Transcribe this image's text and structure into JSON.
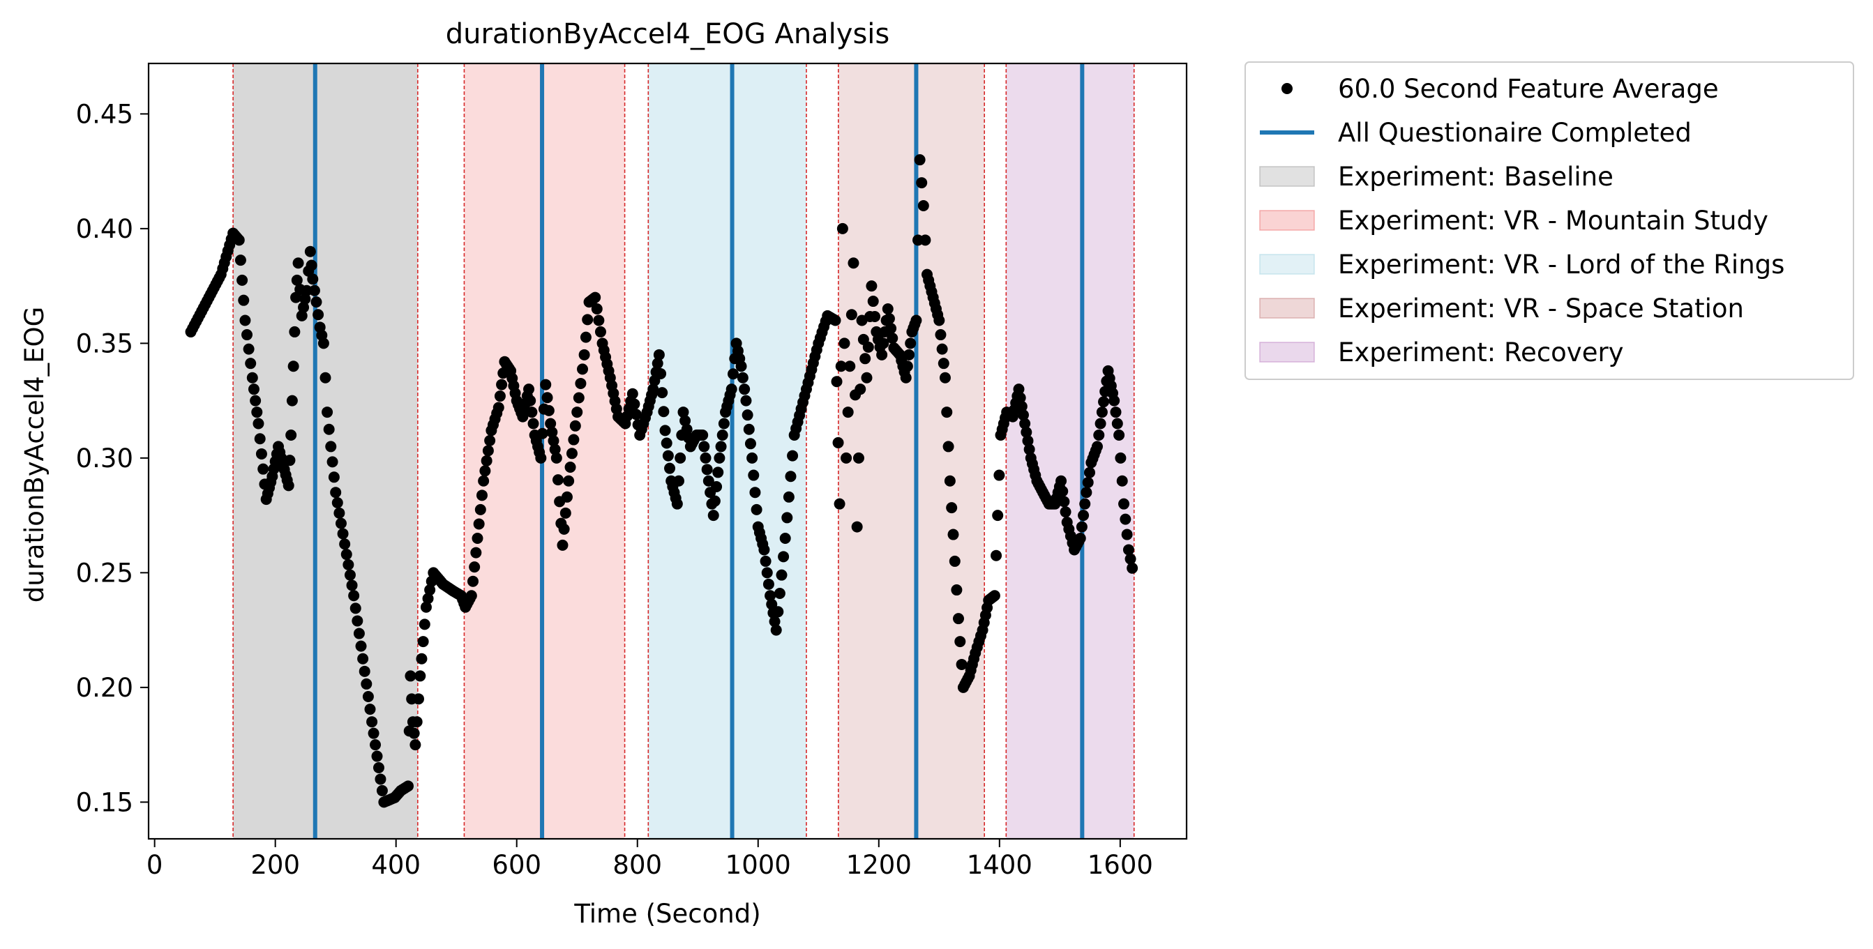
{
  "chart_data": {
    "type": "scatter",
    "title": "durationByAccel4_EOG Analysis",
    "xlabel": "Time (Second)",
    "ylabel": "durationByAccel4_EOG",
    "xlim": [
      -10,
      1710
    ],
    "ylim": [
      0.134,
      0.472
    ],
    "xticks": [
      0,
      200,
      400,
      600,
      800,
      1000,
      1200,
      1400,
      1600
    ],
    "yticks": [
      0.15,
      0.2,
      0.25,
      0.3,
      0.35,
      0.4,
      0.45
    ],
    "ytick_labels": [
      "0.15",
      "0.20",
      "0.25",
      "0.30",
      "0.35",
      "0.40",
      "0.45"
    ],
    "grid": false,
    "legend_position": "outside-top-right",
    "legend": [
      {
        "kind": "marker",
        "label": "60.0 Second Feature Average",
        "color": "#000000"
      },
      {
        "kind": "line",
        "label": "All Questionaire Completed",
        "color": "#1f77b4"
      },
      {
        "kind": "patch",
        "label": "Experiment: Baseline",
        "color": "#a9a9a9"
      },
      {
        "kind": "patch",
        "label": "Experiment: VR - Mountain Study",
        "color": "#f08080"
      },
      {
        "kind": "patch",
        "label": "Experiment: VR - Lord of the Rings",
        "color": "#add8e6"
      },
      {
        "kind": "patch",
        "label": "Experiment: VR - Space Station",
        "color": "#cd8c8c"
      },
      {
        "kind": "patch",
        "label": "Experiment: Recovery",
        "color": "#c38fc8"
      }
    ],
    "regions": [
      {
        "name": "Experiment: Baseline",
        "start": 130,
        "end": 436,
        "color": "#a9a9a9",
        "opacity": 0.45
      },
      {
        "name": "Experiment: VR - Mountain Study",
        "start": 513,
        "end": 779,
        "color": "#f08080",
        "opacity": 0.28
      },
      {
        "name": "Experiment: VR - Lord of the Rings",
        "start": 818,
        "end": 1080,
        "color": "#add8e6",
        "opacity": 0.42
      },
      {
        "name": "Experiment: VR - Space Station",
        "start": 1133,
        "end": 1375,
        "color": "#cd8c8c",
        "opacity": 0.28
      },
      {
        "name": "Experiment: Recovery",
        "start": 1411,
        "end": 1623,
        "color": "#c38fc8",
        "opacity": 0.32
      }
    ],
    "questionnaire_times": [
      266,
      642,
      957,
      1262,
      1537
    ],
    "series": [
      {
        "name": "60.0 Second Feature Average",
        "color": "#000000",
        "points": [
          [
            60,
            0.355
          ],
          [
            90,
            0.37
          ],
          [
            110,
            0.38
          ],
          [
            130,
            0.398
          ],
          [
            140,
            0.395
          ],
          [
            150,
            0.36
          ],
          [
            162,
            0.335
          ],
          [
            172,
            0.315
          ],
          [
            185,
            0.282
          ],
          [
            195,
            0.292
          ],
          [
            205,
            0.305
          ],
          [
            215,
            0.295
          ],
          [
            222,
            0.288
          ],
          [
            226,
            0.31
          ],
          [
            230,
            0.34
          ],
          [
            234,
            0.37
          ],
          [
            238,
            0.385
          ],
          [
            244,
            0.362
          ],
          [
            252,
            0.373
          ],
          [
            258,
            0.39
          ],
          [
            262,
            0.378
          ],
          [
            268,
            0.368
          ],
          [
            274,
            0.357
          ],
          [
            280,
            0.35
          ],
          [
            286,
            0.32
          ],
          [
            292,
            0.305
          ],
          [
            300,
            0.285
          ],
          [
            330,
            0.24
          ],
          [
            360,
            0.185
          ],
          [
            380,
            0.15
          ],
          [
            398,
            0.152
          ],
          [
            408,
            0.155
          ],
          [
            420,
            0.157
          ],
          [
            424,
            0.205
          ],
          [
            428,
            0.185
          ],
          [
            432,
            0.175
          ],
          [
            440,
            0.205
          ],
          [
            450,
            0.235
          ],
          [
            462,
            0.25
          ],
          [
            478,
            0.245
          ],
          [
            495,
            0.242
          ],
          [
            508,
            0.24
          ],
          [
            515,
            0.235
          ],
          [
            525,
            0.24
          ],
          [
            535,
            0.265
          ],
          [
            545,
            0.29
          ],
          [
            558,
            0.312
          ],
          [
            570,
            0.322
          ],
          [
            580,
            0.342
          ],
          [
            590,
            0.338
          ],
          [
            600,
            0.325
          ],
          [
            610,
            0.318
          ],
          [
            620,
            0.33
          ],
          [
            630,
            0.31
          ],
          [
            640,
            0.3
          ],
          [
            648,
            0.332
          ],
          [
            656,
            0.315
          ],
          [
            666,
            0.3
          ],
          [
            676,
            0.262
          ],
          [
            686,
            0.29
          ],
          [
            700,
            0.32
          ],
          [
            712,
            0.345
          ],
          [
            720,
            0.368
          ],
          [
            730,
            0.37
          ],
          [
            742,
            0.35
          ],
          [
            755,
            0.335
          ],
          [
            768,
            0.318
          ],
          [
            780,
            0.315
          ],
          [
            792,
            0.328
          ],
          [
            804,
            0.31
          ],
          [
            816,
            0.32
          ],
          [
            826,
            0.33
          ],
          [
            836,
            0.345
          ],
          [
            846,
            0.312
          ],
          [
            856,
            0.29
          ],
          [
            866,
            0.28
          ],
          [
            876,
            0.32
          ],
          [
            888,
            0.305
          ],
          [
            898,
            0.31
          ],
          [
            908,
            0.31
          ],
          [
            918,
            0.29
          ],
          [
            926,
            0.275
          ],
          [
            936,
            0.3
          ],
          [
            946,
            0.32
          ],
          [
            956,
            0.33
          ],
          [
            964,
            0.35
          ],
          [
            972,
            0.34
          ],
          [
            980,
            0.325
          ],
          [
            990,
            0.3
          ],
          [
            1000,
            0.27
          ],
          [
            1010,
            0.26
          ],
          [
            1020,
            0.24
          ],
          [
            1030,
            0.225
          ],
          [
            1045,
            0.265
          ],
          [
            1060,
            0.31
          ],
          [
            1080,
            0.33
          ],
          [
            1100,
            0.35
          ],
          [
            1115,
            0.362
          ],
          [
            1128,
            0.36
          ],
          [
            1135,
            0.28
          ],
          [
            1140,
            0.4
          ],
          [
            1146,
            0.3
          ],
          [
            1152,
            0.34
          ],
          [
            1158,
            0.385
          ],
          [
            1164,
            0.27
          ],
          [
            1172,
            0.36
          ],
          [
            1180,
            0.335
          ],
          [
            1188,
            0.375
          ],
          [
            1196,
            0.355
          ],
          [
            1205,
            0.345
          ],
          [
            1215,
            0.365
          ],
          [
            1225,
            0.348
          ],
          [
            1235,
            0.345
          ],
          [
            1245,
            0.335
          ],
          [
            1255,
            0.355
          ],
          [
            1262,
            0.36
          ],
          [
            1268,
            0.43
          ],
          [
            1274,
            0.41
          ],
          [
            1280,
            0.38
          ],
          [
            1290,
            0.37
          ],
          [
            1300,
            0.36
          ],
          [
            1310,
            0.335
          ],
          [
            1318,
            0.29
          ],
          [
            1326,
            0.255
          ],
          [
            1332,
            0.23
          ],
          [
            1340,
            0.2
          ],
          [
            1350,
            0.205
          ],
          [
            1360,
            0.215
          ],
          [
            1372,
            0.225
          ],
          [
            1382,
            0.238
          ],
          [
            1392,
            0.24
          ],
          [
            1402,
            0.31
          ],
          [
            1412,
            0.32
          ],
          [
            1422,
            0.318
          ],
          [
            1432,
            0.33
          ],
          [
            1442,
            0.315
          ],
          [
            1452,
            0.3
          ],
          [
            1462,
            0.29
          ],
          [
            1472,
            0.285
          ],
          [
            1482,
            0.28
          ],
          [
            1492,
            0.28
          ],
          [
            1502,
            0.29
          ],
          [
            1512,
            0.272
          ],
          [
            1524,
            0.26
          ],
          [
            1534,
            0.265
          ],
          [
            1544,
            0.285
          ],
          [
            1552,
            0.298
          ],
          [
            1562,
            0.305
          ],
          [
            1570,
            0.32
          ],
          [
            1580,
            0.338
          ],
          [
            1590,
            0.325
          ],
          [
            1598,
            0.31
          ],
          [
            1606,
            0.28
          ],
          [
            1614,
            0.26
          ],
          [
            1620,
            0.252
          ]
        ]
      }
    ]
  }
}
